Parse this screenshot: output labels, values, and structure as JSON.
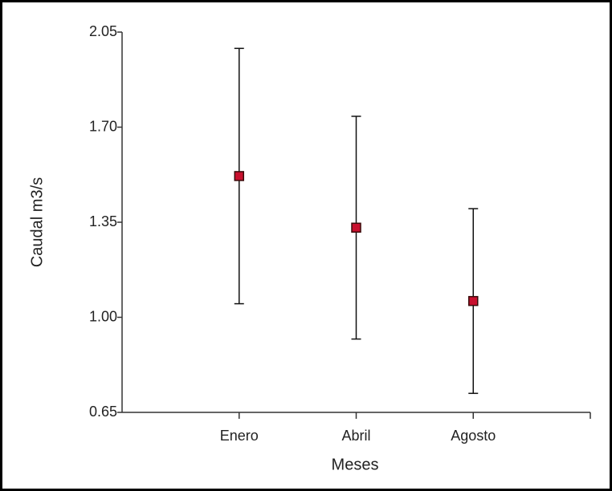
{
  "chart_data": {
    "type": "errorbar",
    "x_label": "Meses",
    "y_label": "Caudal m3/s",
    "categories": [
      "Enero",
      "Abril",
      "Agosto"
    ],
    "values": [
      1.52,
      1.33,
      1.06
    ],
    "errors": [
      0.47,
      0.41,
      0.34
    ],
    "color": "#c8102e",
    "ylim": [
      0.65,
      2.05
    ],
    "yticks": [
      0.65,
      {
        "value": 1,
        "label": "1.00"
      },
      1.35,
      {
        "value": 1.7,
        "label": "1.70"
      },
      2.05
    ]
  }
}
